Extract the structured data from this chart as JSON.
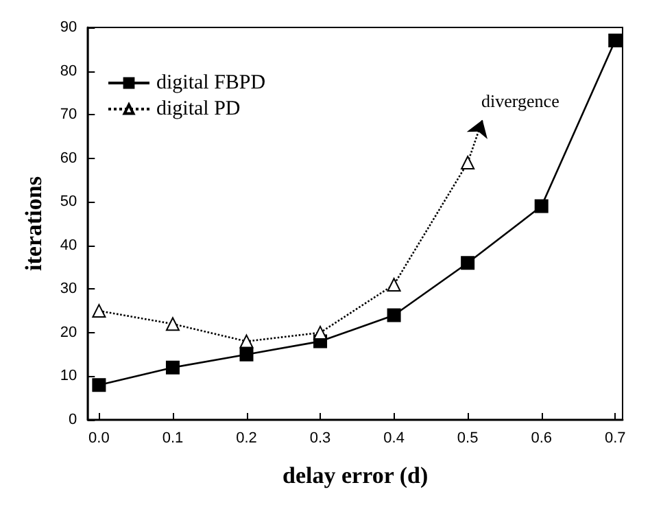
{
  "chart_data": {
    "type": "line",
    "xlabel": "delay error (d)",
    "ylabel": "iterations",
    "x": [
      0,
      0.1,
      0.2,
      0.3,
      0.4,
      0.5,
      0.6,
      0.7
    ],
    "series": [
      {
        "name": "digital FBPD",
        "color": "#000000",
        "marker": "square",
        "line_style": "solid",
        "values": [
          8,
          12,
          15,
          18,
          24,
          36,
          49,
          87
        ]
      },
      {
        "name": "digital PD",
        "color": "#000000",
        "marker": "triangle",
        "line_style": "dotted",
        "x": [
          0,
          0.1,
          0.2,
          0.3,
          0.4,
          0.5
        ],
        "values": [
          25,
          22,
          18,
          20,
          31,
          59
        ]
      }
    ],
    "xlim": [
      -0.015,
      0.71
    ],
    "xticks": [
      {
        "value": 0,
        "label": "0.0"
      },
      0.1,
      0.2,
      0.3,
      0.4,
      0.5,
      0.6,
      0.7
    ],
    "ylim": [
      0,
      90
    ],
    "yticks": [
      0,
      10,
      20,
      30,
      40,
      50,
      60,
      70,
      80,
      90
    ],
    "annotations": [
      "divergence"
    ],
    "grid": false,
    "legend": "top left"
  }
}
